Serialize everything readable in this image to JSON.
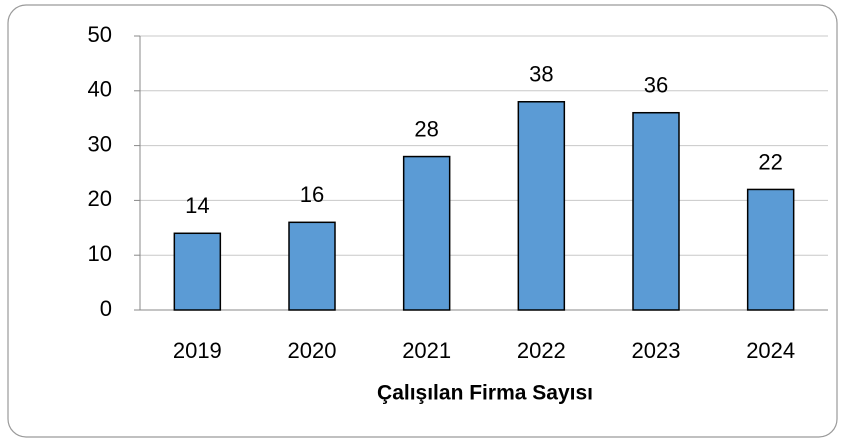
{
  "chart_data": {
    "type": "bar",
    "x_label": "Çalışılan Firma Sayısı",
    "categories": [
      "2019",
      "2020",
      "2021",
      "2022",
      "2023",
      "2024"
    ],
    "values": [
      14,
      16,
      28,
      38,
      36,
      22
    ],
    "color": "#5b9bd5",
    "ylim": [
      0,
      50
    ],
    "yticks": [
      0,
      10,
      20,
      30,
      40,
      50
    ],
    "grid": true
  }
}
